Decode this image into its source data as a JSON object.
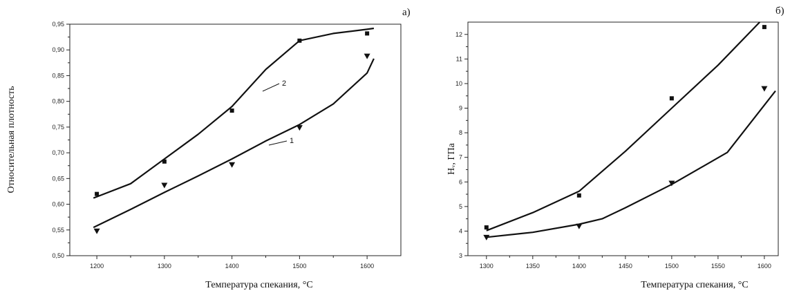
{
  "chart_data": [
    {
      "type": "scatter",
      "panel_label": "а)",
      "xlabel": "Температура спекания, °С",
      "ylabel": "Относительная плотность",
      "xlim": [
        1160,
        1650
      ],
      "ylim": [
        0.5,
        0.95
      ],
      "x_ticks": [
        "1200",
        "1300",
        "1400",
        "1500",
        "1600"
      ],
      "y_ticks": [
        "0,50",
        "0,55",
        "0,60",
        "0,65",
        "0,70",
        "0,75",
        "0,80",
        "0,85",
        "0,90",
        "0,95"
      ],
      "grid": false,
      "series": [
        {
          "name": "2",
          "marker": "square",
          "x": [
            1200,
            1300,
            1400,
            1500,
            1600
          ],
          "y": [
            0.62,
            0.683,
            0.782,
            0.918,
            0.932
          ],
          "fit": [
            [
              1195,
              0.612
            ],
            [
              1250,
              0.64
            ],
            [
              1300,
              0.688
            ],
            [
              1350,
              0.736
            ],
            [
              1400,
              0.79
            ],
            [
              1450,
              0.862
            ],
            [
              1500,
              0.918
            ],
            [
              1550,
              0.932
            ],
            [
              1600,
              0.94
            ],
            [
              1610,
              0.942
            ]
          ]
        },
        {
          "name": "1",
          "marker": "triangle-down",
          "x": [
            1200,
            1300,
            1400,
            1500,
            1600
          ],
          "y": [
            0.548,
            0.637,
            0.677,
            0.749,
            0.888
          ],
          "fit": [
            [
              1195,
              0.555
            ],
            [
              1250,
              0.59
            ],
            [
              1300,
              0.623
            ],
            [
              1350,
              0.655
            ],
            [
              1400,
              0.688
            ],
            [
              1450,
              0.723
            ],
            [
              1500,
              0.755
            ],
            [
              1550,
              0.795
            ],
            [
              1600,
              0.855
            ],
            [
              1610,
              0.883
            ]
          ]
        }
      ]
    },
    {
      "type": "scatter",
      "panel_label": "б)",
      "xlabel": "Температура спекания, °С",
      "ylabel": "Hᵥ, ГПа",
      "xlim": [
        1280,
        1615
      ],
      "ylim": [
        3,
        12.5
      ],
      "x_ticks": [
        "1300",
        "1350",
        "1400",
        "1450",
        "1500",
        "1550",
        "1600"
      ],
      "y_ticks": [
        "3",
        "4",
        "5",
        "6",
        "7",
        "8",
        "9",
        "10",
        "11",
        "12"
      ],
      "grid": false,
      "series": [
        {
          "name": "",
          "marker": "square",
          "x": [
            1300,
            1400,
            1500,
            1600
          ],
          "y": [
            4.15,
            5.45,
            9.4,
            12.3
          ],
          "fit": [
            [
              1300,
              4.02
            ],
            [
              1350,
              4.75
            ],
            [
              1400,
              5.62
            ],
            [
              1450,
              7.25
            ],
            [
              1500,
              9.0
            ],
            [
              1550,
              10.75
            ],
            [
              1595,
              12.5
            ]
          ]
        },
        {
          "name": "",
          "marker": "triangle-down",
          "x": [
            1300,
            1400,
            1500,
            1600
          ],
          "y": [
            3.75,
            4.2,
            5.95,
            9.8
          ],
          "fit": [
            [
              1300,
              3.75
            ],
            [
              1350,
              3.95
            ],
            [
              1400,
              4.28
            ],
            [
              1425,
              4.5
            ],
            [
              1450,
              4.95
            ],
            [
              1500,
              5.9
            ],
            [
              1560,
              7.2
            ],
            [
              1612,
              9.7
            ]
          ]
        }
      ]
    }
  ]
}
